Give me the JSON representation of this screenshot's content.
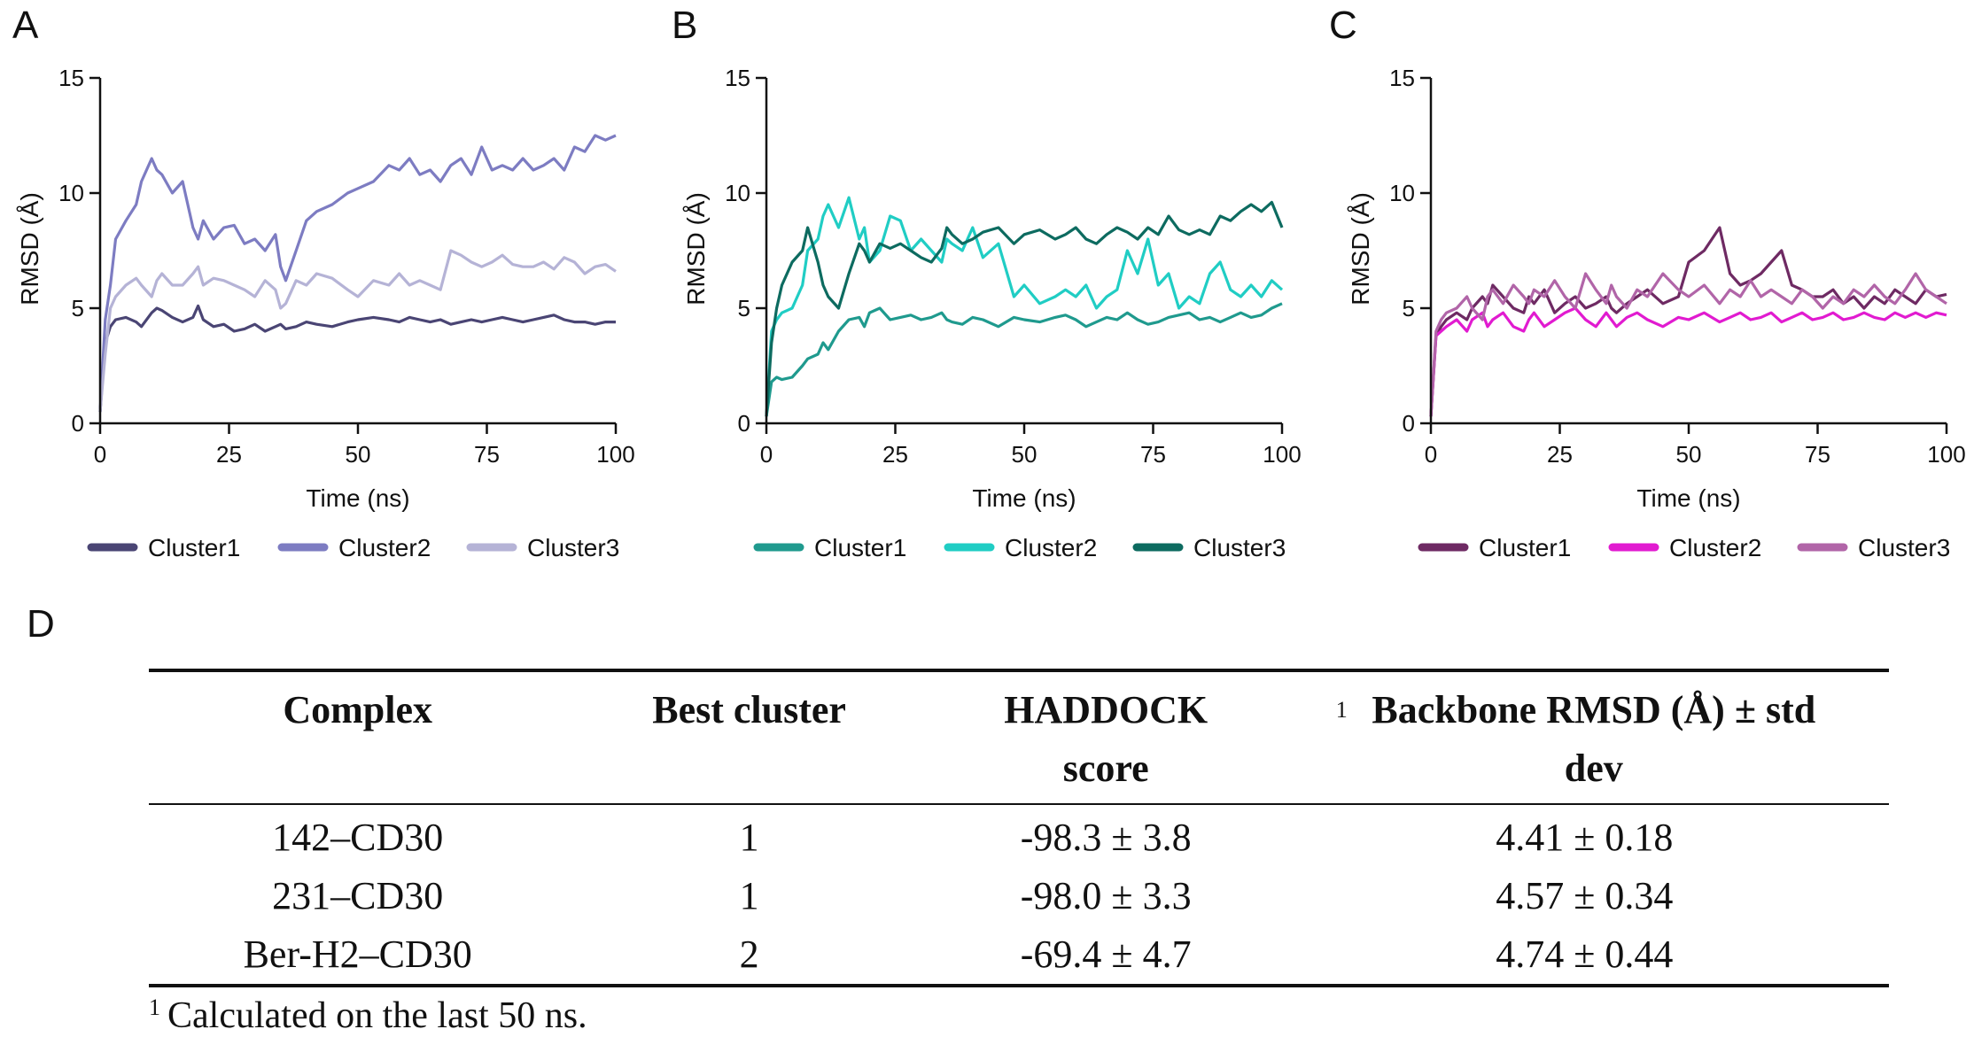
{
  "panel_labels": {
    "A": "A",
    "B": "B",
    "C": "C",
    "D": "D"
  },
  "chart_data": [
    {
      "panel": "A",
      "type": "line",
      "title": "",
      "xlabel": "Time (ns)",
      "ylabel": "RMSD (Å)",
      "xlim": [
        0,
        100
      ],
      "ylim": [
        0,
        15
      ],
      "xticks": [
        "0",
        "25",
        "50",
        "75",
        "100"
      ],
      "yticks": [
        "0",
        "5",
        "10",
        "15"
      ],
      "x": [
        0,
        1,
        2,
        3,
        5,
        7,
        8,
        10,
        11,
        12,
        14,
        16,
        18,
        19,
        20,
        22,
        24,
        26,
        28,
        30,
        32,
        34,
        35,
        36,
        38,
        40,
        42,
        45,
        48,
        50,
        53,
        56,
        58,
        60,
        62,
        64,
        66,
        68,
        70,
        72,
        74,
        76,
        78,
        80,
        82,
        84,
        86,
        88,
        90,
        92,
        94,
        96,
        98,
        100
      ],
      "series": [
        {
          "name": "Cluster1",
          "color": "#4a4574",
          "values": [
            0.5,
            3.5,
            4.2,
            4.5,
            4.6,
            4.4,
            4.2,
            4.8,
            5.0,
            4.9,
            4.6,
            4.4,
            4.6,
            5.1,
            4.5,
            4.2,
            4.3,
            4.0,
            4.1,
            4.3,
            4.0,
            4.2,
            4.3,
            4.1,
            4.2,
            4.4,
            4.3,
            4.2,
            4.4,
            4.5,
            4.6,
            4.5,
            4.4,
            4.6,
            4.5,
            4.4,
            4.5,
            4.3,
            4.4,
            4.5,
            4.4,
            4.5,
            4.6,
            4.5,
            4.4,
            4.5,
            4.6,
            4.7,
            4.5,
            4.4,
            4.4,
            4.3,
            4.4,
            4.4
          ]
        },
        {
          "name": "Cluster2",
          "color": "#7d7cc2",
          "values": [
            0.5,
            4.5,
            6.0,
            8.0,
            8.8,
            9.5,
            10.5,
            11.5,
            11.0,
            10.8,
            10.0,
            10.5,
            8.5,
            8.0,
            8.8,
            8.0,
            8.5,
            8.6,
            7.8,
            8.0,
            7.5,
            8.2,
            6.8,
            6.2,
            7.5,
            8.8,
            9.2,
            9.5,
            10.0,
            10.2,
            10.5,
            11.2,
            11.0,
            11.5,
            10.8,
            11.0,
            10.5,
            11.2,
            11.5,
            10.8,
            12.0,
            11.0,
            11.2,
            11.0,
            11.5,
            11.0,
            11.2,
            11.5,
            11.0,
            12.0,
            11.8,
            12.5,
            12.3,
            12.5
          ]
        },
        {
          "name": "Cluster3",
          "color": "#b5b3d6",
          "values": [
            0.5,
            3.0,
            5.0,
            5.5,
            6.0,
            6.3,
            6.0,
            5.5,
            6.2,
            6.5,
            6.0,
            6.0,
            6.5,
            6.8,
            6.0,
            6.3,
            6.2,
            6.0,
            5.8,
            5.5,
            6.2,
            5.8,
            5.0,
            5.2,
            6.2,
            6.0,
            6.5,
            6.3,
            5.8,
            5.5,
            6.2,
            6.0,
            6.5,
            6.0,
            6.2,
            6.0,
            5.8,
            7.5,
            7.3,
            7.0,
            6.8,
            7.0,
            7.3,
            6.9,
            6.8,
            6.8,
            7.0,
            6.7,
            7.2,
            7.0,
            6.5,
            6.8,
            6.9,
            6.6
          ]
        }
      ],
      "legend": "bottom"
    },
    {
      "panel": "B",
      "type": "line",
      "title": "",
      "xlabel": "Time (ns)",
      "ylabel": "RMSD (Å)",
      "xlim": [
        0,
        100
      ],
      "ylim": [
        0,
        15
      ],
      "xticks": [
        "0",
        "25",
        "50",
        "75",
        "100"
      ],
      "yticks": [
        "0",
        "5",
        "10",
        "15"
      ],
      "x": [
        0,
        1,
        2,
        3,
        5,
        7,
        8,
        10,
        11,
        12,
        14,
        16,
        18,
        19,
        20,
        22,
        24,
        26,
        28,
        30,
        32,
        34,
        35,
        36,
        38,
        40,
        42,
        45,
        48,
        50,
        53,
        56,
        58,
        60,
        62,
        64,
        66,
        68,
        70,
        72,
        74,
        76,
        78,
        80,
        82,
        84,
        86,
        88,
        90,
        92,
        94,
        96,
        98,
        100
      ],
      "series": [
        {
          "name": "Cluster1",
          "color": "#1f9a8e",
          "values": [
            0.3,
            1.8,
            2.0,
            1.9,
            2.0,
            2.5,
            2.8,
            3.0,
            3.5,
            3.2,
            4.0,
            4.5,
            4.6,
            4.2,
            4.8,
            5.0,
            4.5,
            4.6,
            4.7,
            4.5,
            4.6,
            4.8,
            4.5,
            4.4,
            4.3,
            4.6,
            4.5,
            4.2,
            4.6,
            4.5,
            4.4,
            4.6,
            4.7,
            4.5,
            4.2,
            4.4,
            4.6,
            4.5,
            4.8,
            4.5,
            4.3,
            4.4,
            4.6,
            4.7,
            4.8,
            4.5,
            4.6,
            4.4,
            4.6,
            4.8,
            4.6,
            4.7,
            5.0,
            5.2
          ]
        },
        {
          "name": "Cluster2",
          "color": "#20cdc4",
          "values": [
            0.3,
            4.0,
            4.5,
            4.8,
            5.0,
            6.0,
            7.5,
            8.0,
            9.0,
            9.5,
            8.5,
            9.8,
            8.0,
            8.5,
            7.0,
            7.5,
            9.0,
            8.8,
            7.5,
            8.0,
            7.5,
            7.0,
            8.0,
            7.8,
            7.5,
            8.5,
            7.2,
            7.8,
            5.5,
            6.0,
            5.2,
            5.5,
            5.8,
            5.5,
            6.0,
            5.0,
            5.5,
            5.8,
            7.5,
            6.5,
            8.0,
            6.0,
            6.5,
            5.0,
            5.5,
            5.2,
            6.5,
            7.0,
            5.8,
            5.5,
            6.0,
            5.5,
            6.2,
            5.8
          ]
        },
        {
          "name": "Cluster3",
          "color": "#0d6b60",
          "values": [
            0.3,
            3.5,
            5.0,
            6.0,
            7.0,
            7.5,
            8.5,
            7.0,
            6.0,
            5.5,
            5.0,
            6.5,
            7.8,
            7.5,
            7.0,
            7.8,
            7.6,
            7.8,
            7.5,
            7.2,
            7.0,
            7.6,
            8.5,
            8.2,
            7.8,
            8.0,
            8.3,
            8.5,
            7.8,
            8.2,
            8.4,
            8.0,
            8.2,
            8.5,
            8.0,
            7.8,
            8.2,
            8.5,
            8.3,
            8.0,
            8.5,
            8.2,
            9.0,
            8.4,
            8.2,
            8.4,
            8.2,
            9.0,
            8.8,
            9.2,
            9.5,
            9.2,
            9.6,
            8.5
          ]
        }
      ],
      "legend": "bottom"
    },
    {
      "panel": "C",
      "type": "line",
      "title": "",
      "xlabel": "Time (ns)",
      "ylabel": "RMSD (Å)",
      "xlim": [
        0,
        100
      ],
      "ylim": [
        0,
        15
      ],
      "xticks": [
        "0",
        "25",
        "50",
        "75",
        "100"
      ],
      "yticks": [
        "0",
        "5",
        "10",
        "15"
      ],
      "x": [
        0,
        1,
        2,
        3,
        5,
        7,
        8,
        10,
        11,
        12,
        14,
        16,
        18,
        19,
        20,
        22,
        24,
        26,
        28,
        30,
        32,
        34,
        35,
        36,
        38,
        40,
        42,
        45,
        48,
        50,
        53,
        56,
        58,
        60,
        62,
        64,
        66,
        68,
        70,
        72,
        74,
        76,
        78,
        80,
        82,
        84,
        86,
        88,
        90,
        92,
        94,
        96,
        98,
        100
      ],
      "series": [
        {
          "name": "Cluster1",
          "color": "#6e2a63",
          "values": [
            0.3,
            3.8,
            4.2,
            4.5,
            4.8,
            4.5,
            5.0,
            5.5,
            5.2,
            6.0,
            5.5,
            5.0,
            4.8,
            5.5,
            5.2,
            5.8,
            4.8,
            5.2,
            5.5,
            5.0,
            5.2,
            5.5,
            5.0,
            4.8,
            5.2,
            5.5,
            5.8,
            5.2,
            5.5,
            7.0,
            7.5,
            8.5,
            6.5,
            6.0,
            6.2,
            6.5,
            7.0,
            7.5,
            6.0,
            5.8,
            5.5,
            5.5,
            5.8,
            5.2,
            5.5,
            5.0,
            5.5,
            5.2,
            5.8,
            5.5,
            5.2,
            5.8,
            5.5,
            5.6
          ]
        },
        {
          "name": "Cluster2",
          "color": "#e11bd0",
          "values": [
            0.3,
            3.8,
            4.0,
            4.2,
            4.5,
            4.0,
            4.5,
            4.8,
            4.2,
            4.5,
            4.8,
            4.2,
            4.0,
            4.5,
            4.8,
            4.2,
            4.5,
            4.8,
            5.0,
            4.5,
            4.2,
            4.8,
            4.5,
            4.2,
            4.6,
            4.8,
            4.5,
            4.2,
            4.6,
            4.5,
            4.8,
            4.4,
            4.6,
            4.8,
            4.5,
            4.6,
            4.8,
            4.4,
            4.6,
            4.8,
            4.5,
            4.6,
            4.8,
            4.5,
            4.6,
            4.8,
            4.6,
            4.5,
            4.8,
            4.6,
            4.8,
            4.6,
            4.8,
            4.7
          ]
        },
        {
          "name": "Cluster3",
          "color": "#b165a8",
          "values": [
            0.3,
            4.0,
            4.5,
            4.8,
            5.0,
            5.5,
            5.0,
            4.5,
            5.5,
            5.8,
            5.2,
            6.0,
            5.5,
            5.2,
            5.8,
            5.5,
            6.2,
            5.5,
            5.0,
            6.5,
            5.8,
            5.2,
            6.0,
            5.5,
            5.0,
            5.8,
            5.5,
            6.5,
            5.8,
            5.5,
            6.0,
            5.2,
            5.8,
            5.5,
            6.2,
            5.5,
            5.8,
            5.5,
            5.2,
            5.8,
            5.5,
            5.0,
            5.5,
            5.2,
            5.8,
            5.5,
            6.0,
            5.5,
            5.2,
            5.8,
            6.5,
            5.8,
            5.5,
            5.2
          ]
        }
      ],
      "legend": "bottom"
    }
  ],
  "table": {
    "headers": {
      "complex": "Complex",
      "best_cluster": "Best cluster",
      "haddock": "HADDOCK score",
      "rmsd_sup": "1",
      "rmsd": "Backbone RMSD (Å) ± std dev"
    },
    "rows": [
      {
        "complex": "142–CD30",
        "best_cluster": "1",
        "haddock": "-98.3 ± 3.8",
        "rmsd": "4.41 ± 0.18"
      },
      {
        "complex": "231–CD30",
        "best_cluster": "1",
        "haddock": "-98.0 ± 3.3",
        "rmsd": "4.57 ± 0.34"
      },
      {
        "complex": "Ber-H2–CD30",
        "best_cluster": "2",
        "haddock": "-69.4 ± 4.7",
        "rmsd": "4.74 ± 0.44"
      }
    ],
    "footnote_sup": "1",
    "footnote": "Calculated on the last 50 ns."
  }
}
